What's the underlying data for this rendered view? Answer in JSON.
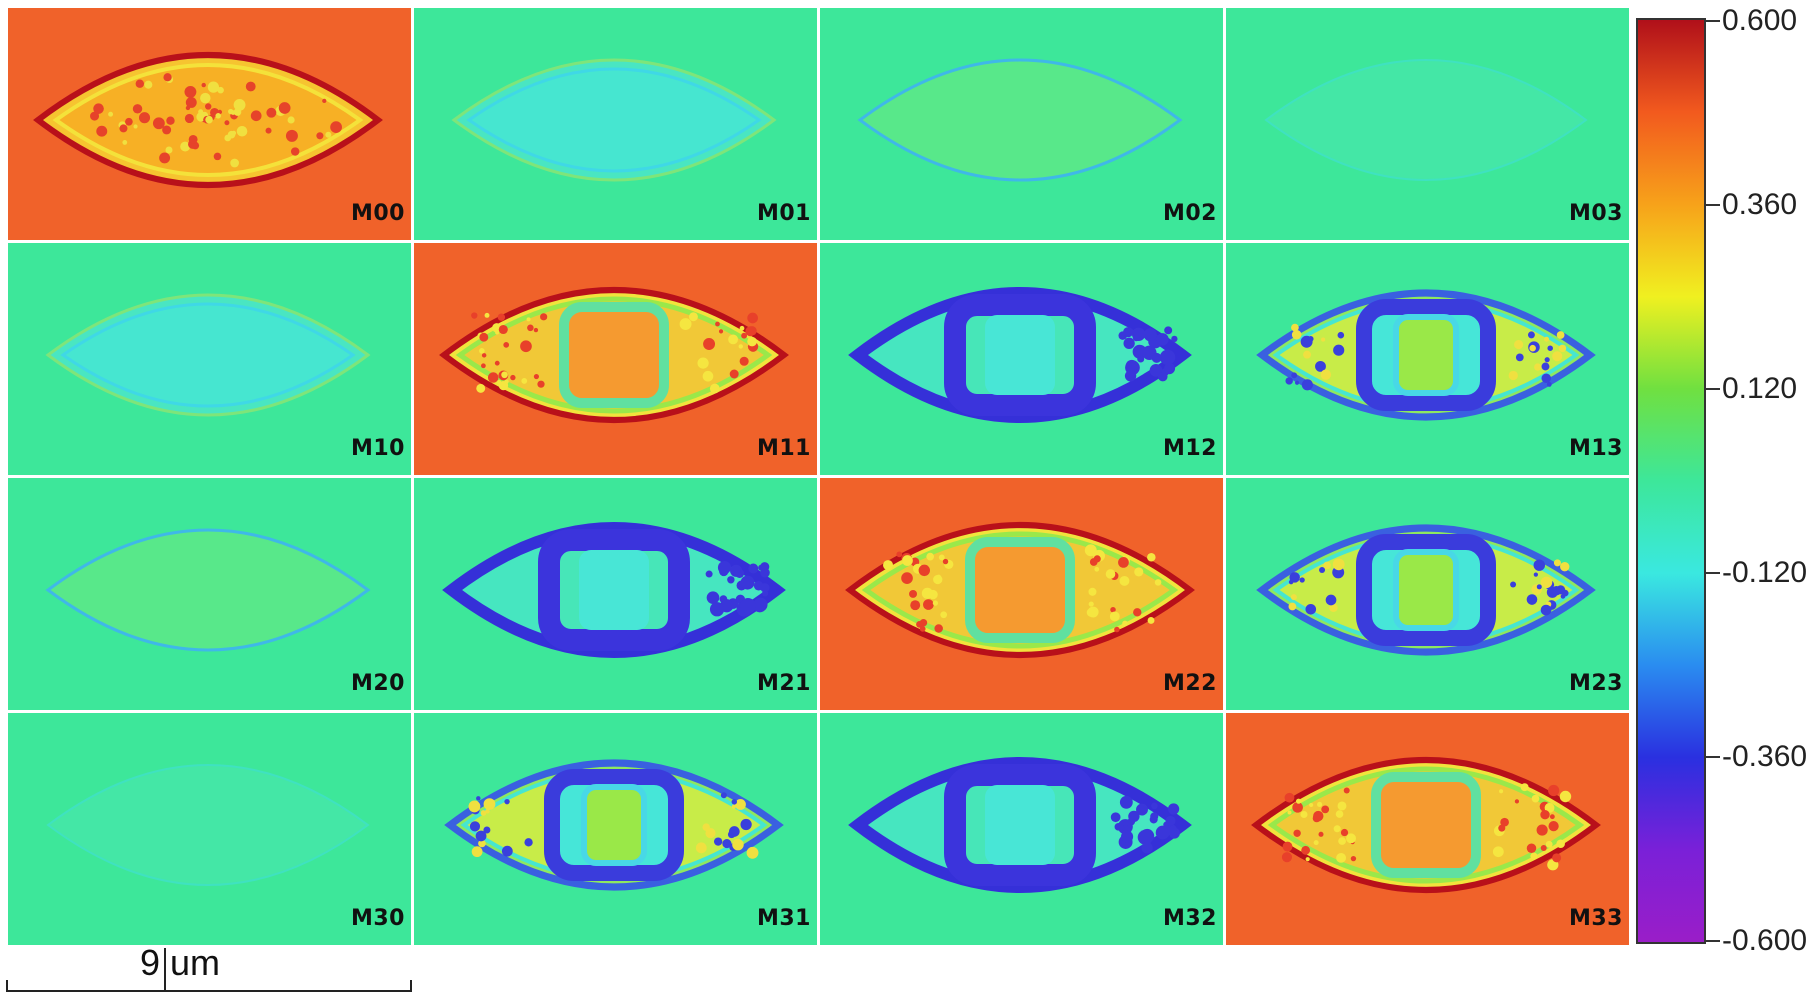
{
  "tiles": [
    {
      "label": "M00",
      "bg": "#f0622a",
      "pattern": "bright"
    },
    {
      "label": "M01",
      "bg": "#3de79a",
      "pattern": "faint-cyan"
    },
    {
      "label": "M02",
      "bg": "#3de79a",
      "pattern": "faint"
    },
    {
      "label": "M03",
      "bg": "#3de79a",
      "pattern": "very-faint"
    },
    {
      "label": "M10",
      "bg": "#3de79a",
      "pattern": "faint-cyan"
    },
    {
      "label": "M11",
      "bg": "#f0622a",
      "pattern": "bright-rect"
    },
    {
      "label": "M12",
      "bg": "#3de79a",
      "pattern": "blue-rect"
    },
    {
      "label": "M13",
      "bg": "#3de79a",
      "pattern": "mixed-rect"
    },
    {
      "label": "M20",
      "bg": "#3de79a",
      "pattern": "faint"
    },
    {
      "label": "M21",
      "bg": "#3de79a",
      "pattern": "blue-rect"
    },
    {
      "label": "M22",
      "bg": "#f0622a",
      "pattern": "bright-rect"
    },
    {
      "label": "M23",
      "bg": "#3de79a",
      "pattern": "mixed-rect"
    },
    {
      "label": "M30",
      "bg": "#3de79a",
      "pattern": "very-faint"
    },
    {
      "label": "M31",
      "bg": "#3de79a",
      "pattern": "mixed-rect"
    },
    {
      "label": "M32",
      "bg": "#3de79a",
      "pattern": "blue-rect"
    },
    {
      "label": "M33",
      "bg": "#f0622a",
      "pattern": "bright-rect"
    }
  ],
  "colorbar": {
    "labels": [
      "0.600",
      "0.360",
      "0.120",
      "-0.120",
      "-0.360",
      "-0.600"
    ],
    "colors": [
      "#b0101a",
      "#f25a1e",
      "#f7a21a",
      "#f0f020",
      "#70e040",
      "#3de79a",
      "#3ae8e0",
      "#2a8cf0",
      "#2a30e0",
      "#7a20d8",
      "#9a1ec8"
    ]
  },
  "scalebar": {
    "label": "9 um"
  }
}
